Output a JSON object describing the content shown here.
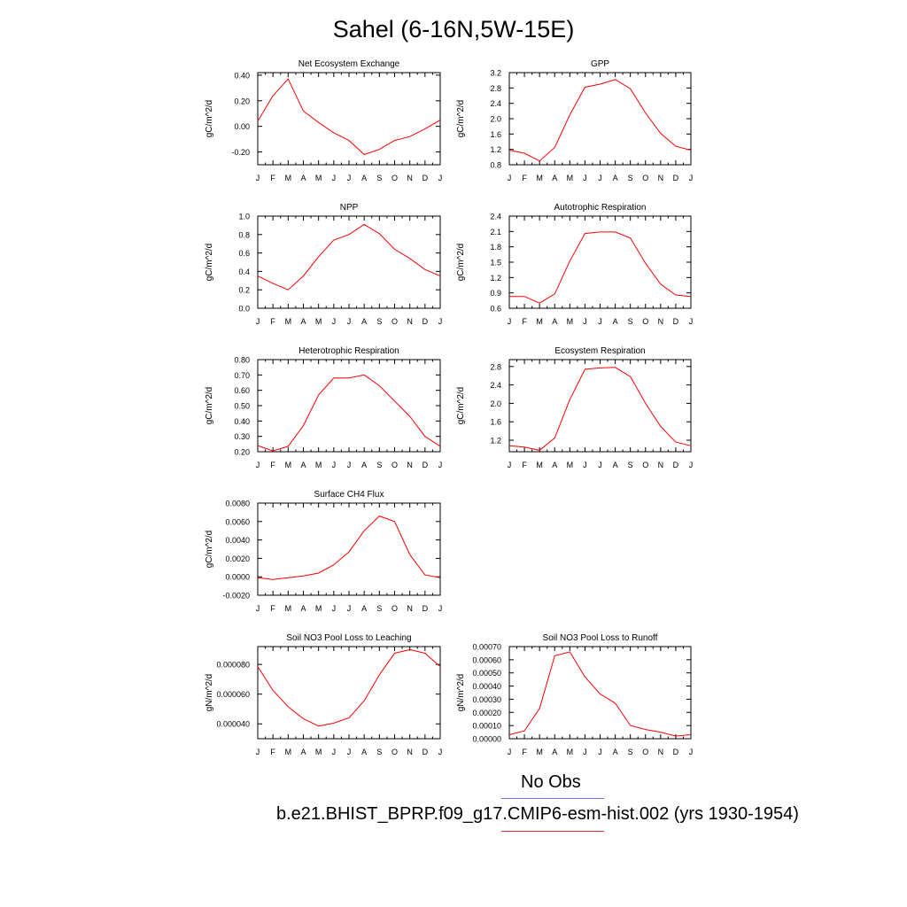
{
  "title": "Sahel (6-16N,5W-15E)",
  "months": [
    "J",
    "F",
    "M",
    "A",
    "M",
    "J",
    "J",
    "A",
    "S",
    "O",
    "N",
    "D",
    "J"
  ],
  "legend": [
    {
      "label": "No Obs",
      "color": "#6f6fe8"
    },
    {
      "label": "b.e21.BHIST_BPRP.f09_g17.CMIP6-esm-hist.002 (yrs 1930-1954)",
      "color": "#e83030"
    }
  ],
  "chart_data": [
    {
      "type": "line",
      "title": "Net Ecosystem Exchange",
      "ylabel": "gC/m^2/d",
      "yticks": [
        "0.40",
        "0.20",
        "0.00",
        "-0.20"
      ],
      "ytick_values": [
        0.4,
        0.2,
        0.0,
        -0.2
      ],
      "ylim": [
        -0.3,
        0.42
      ],
      "series": [
        {
          "color": "#ff0000",
          "values": [
            0.04,
            0.24,
            0.37,
            0.12,
            0.03,
            -0.05,
            -0.11,
            -0.22,
            -0.18,
            -0.11,
            -0.08,
            -0.02,
            0.05
          ]
        }
      ]
    },
    {
      "type": "line",
      "title": "GPP",
      "ylabel": "gC/m^2/d",
      "yticks": [
        "3.2",
        "2.8",
        "2.4",
        "2.0",
        "1.6",
        "1.2",
        "0.8"
      ],
      "ytick_values": [
        3.2,
        2.8,
        2.4,
        2.0,
        1.6,
        1.2,
        0.8
      ],
      "ylim": [
        0.8,
        3.2
      ],
      "series": [
        {
          "color": "#ff0000",
          "values": [
            1.18,
            1.1,
            0.9,
            1.25,
            2.1,
            2.82,
            2.9,
            3.02,
            2.78,
            2.15,
            1.62,
            1.28,
            1.18
          ]
        }
      ]
    },
    {
      "type": "line",
      "title": "NPP",
      "ylabel": "gC/m^2/d",
      "yticks": [
        "1.0",
        "0.8",
        "0.6",
        "0.4",
        "0.2",
        "0.0"
      ],
      "ytick_values": [
        1.0,
        0.8,
        0.6,
        0.4,
        0.2,
        0.0
      ],
      "ylim": [
        0.0,
        1.0
      ],
      "series": [
        {
          "color": "#ff0000",
          "values": [
            0.35,
            0.27,
            0.2,
            0.35,
            0.56,
            0.74,
            0.8,
            0.91,
            0.81,
            0.64,
            0.54,
            0.42,
            0.35
          ]
        }
      ]
    },
    {
      "type": "line",
      "title": "Autotrophic Respiration",
      "ylabel": "gC/m^2/d",
      "yticks": [
        "2.4",
        "2.1",
        "1.8",
        "1.5",
        "1.2",
        "0.9",
        "0.6"
      ],
      "ytick_values": [
        2.4,
        2.1,
        1.8,
        1.5,
        1.2,
        0.9,
        0.6
      ],
      "ylim": [
        0.6,
        2.4
      ],
      "series": [
        {
          "color": "#ff0000",
          "values": [
            0.83,
            0.83,
            0.7,
            0.88,
            1.52,
            2.06,
            2.09,
            2.09,
            1.97,
            1.48,
            1.07,
            0.86,
            0.83
          ]
        }
      ]
    },
    {
      "type": "line",
      "title": "Heterotrophic Respiration",
      "ylabel": "gC/m^2/d",
      "yticks": [
        "0.80",
        "0.70",
        "0.60",
        "0.50",
        "0.40",
        "0.30",
        "0.20"
      ],
      "ytick_values": [
        0.8,
        0.7,
        0.6,
        0.5,
        0.4,
        0.3,
        0.2
      ],
      "ylim": [
        0.2,
        0.8
      ],
      "series": [
        {
          "color": "#ff0000",
          "values": [
            0.24,
            0.205,
            0.235,
            0.37,
            0.57,
            0.68,
            0.68,
            0.7,
            0.63,
            0.53,
            0.43,
            0.3,
            0.235
          ]
        }
      ]
    },
    {
      "type": "line",
      "title": "Ecosystem Respiration",
      "ylabel": "gC/m^2/d",
      "yticks": [
        "2.8",
        "2.4",
        "2.0",
        "1.6",
        "1.2"
      ],
      "ytick_values": [
        2.8,
        2.4,
        2.0,
        1.6,
        1.2
      ],
      "ylim": [
        0.95,
        2.95
      ],
      "series": [
        {
          "color": "#ff0000",
          "values": [
            1.08,
            1.05,
            0.98,
            1.25,
            2.08,
            2.74,
            2.77,
            2.78,
            2.58,
            2.0,
            1.5,
            1.16,
            1.08
          ]
        }
      ]
    },
    {
      "type": "line",
      "title": "Surface CH4 Flux",
      "ylabel": "gC/m^2/d",
      "yticks": [
        "0.0080",
        "0.0060",
        "0.0040",
        "0.0020",
        "0.0000",
        "-0.0020"
      ],
      "ytick_values": [
        0.008,
        0.006,
        0.004,
        0.002,
        0.0,
        -0.002
      ],
      "ylim": [
        -0.002,
        0.008
      ],
      "series": [
        {
          "color": "#ff0000",
          "values": [
            -0.0001,
            -0.0003,
            -0.0001,
            0.0001,
            0.0004,
            0.0013,
            0.0027,
            0.005,
            0.0066,
            0.006,
            0.0024,
            0.0002,
            -0.0001
          ]
        }
      ]
    },
    {
      "type": "line",
      "title": "Soil NO3 Pool Loss to Leaching",
      "ylabel": "gN/m^2/d",
      "yticks": [
        "0.000080",
        "0.000060",
        "0.000040"
      ],
      "ytick_values": [
        8e-05,
        6e-05,
        4e-05
      ],
      "ylim": [
        3e-05,
        9.2e-05
      ],
      "series": [
        {
          "color": "#ff0000",
          "values": [
            7.85e-05,
            6.25e-05,
            5.15e-05,
            4.35e-05,
            3.85e-05,
            4.05e-05,
            4.4e-05,
            5.55e-05,
            7.3e-05,
            8.75e-05,
            9e-05,
            8.75e-05,
            7.85e-05
          ]
        }
      ]
    },
    {
      "type": "line",
      "title": "Soil NO3 Pool Loss to Runoff",
      "ylabel": "gN/m^2/d",
      "yticks": [
        "0.00070",
        "0.00060",
        "0.00050",
        "0.00040",
        "0.00030",
        "0.00020",
        "0.00010",
        "0.00000"
      ],
      "ytick_values": [
        0.0007,
        0.0006,
        0.0005,
        0.0004,
        0.0003,
        0.0002,
        0.0001,
        0.0
      ],
      "ylim": [
        0.0,
        0.0007
      ],
      "series": [
        {
          "color": "#ff0000",
          "values": [
            3e-05,
            6e-05,
            0.00023,
            0.00063,
            0.00066,
            0.00047,
            0.00034,
            0.00027,
            0.0001,
            7e-05,
            5e-05,
            2e-05,
            3e-05
          ]
        }
      ]
    }
  ]
}
